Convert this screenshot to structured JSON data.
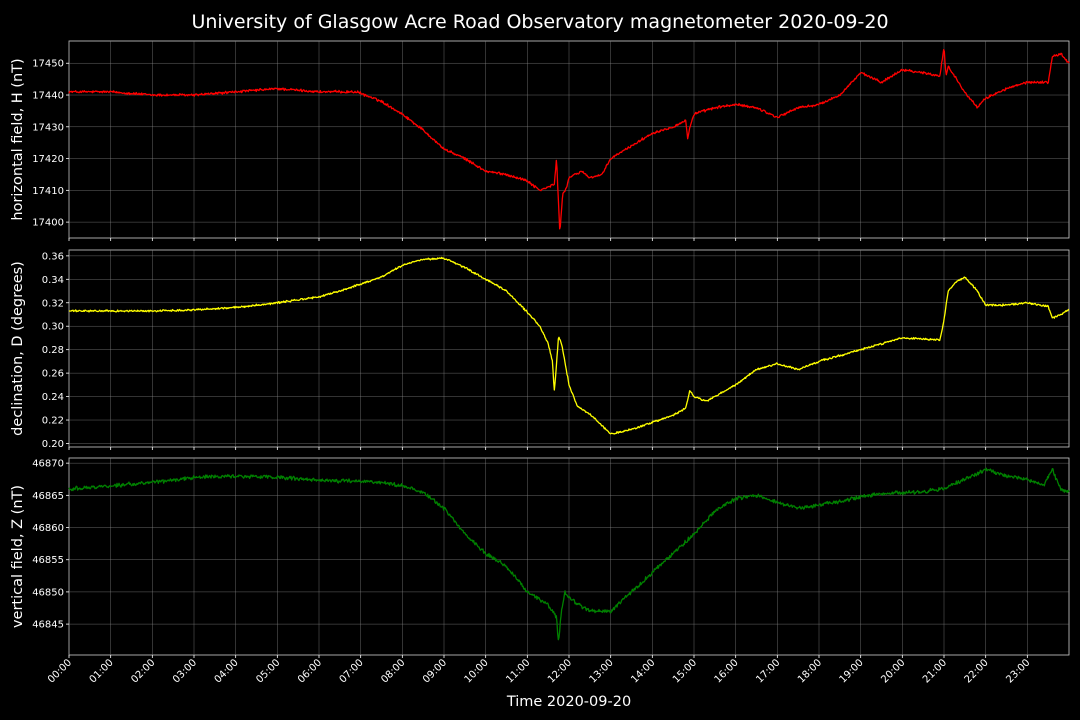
{
  "title": "University of Glasgow Acre Road Observatory magnetometer 2020-09-20",
  "chart_data": {
    "type": "line",
    "x_label": "Time 2020-09-20",
    "x_ticks": [
      "00:00",
      "01:00",
      "02:00",
      "03:00",
      "04:00",
      "05:00",
      "06:00",
      "07:00",
      "08:00",
      "09:00",
      "10:00",
      "11:00",
      "12:00",
      "13:00",
      "14:00",
      "15:00",
      "16:00",
      "17:00",
      "18:00",
      "19:00",
      "20:00",
      "21:00",
      "22:00",
      "23:00"
    ],
    "x_range_hours": [
      0,
      24
    ],
    "grid": true,
    "panels": [
      {
        "ylabel": "horizontal field, H (nT)",
        "color": "#ff0000",
        "ylim": [
          17395,
          17457
        ],
        "yticks": [
          17400,
          17410,
          17420,
          17430,
          17440,
          17450
        ],
        "tick_decimals": 0,
        "noise": 0.6,
        "x": [
          0,
          1,
          2,
          3,
          4,
          5,
          6,
          6.9,
          7.5,
          8,
          8.5,
          9,
          9.5,
          10,
          10.5,
          11,
          11.3,
          11.5,
          11.65,
          11.7,
          11.78,
          11.8,
          11.85,
          11.95,
          12,
          12.3,
          12.5,
          12.8,
          13,
          13.5,
          14,
          14.5,
          14.8,
          14.85,
          14.9,
          15,
          15.5,
          16,
          16.5,
          17,
          17.5,
          18,
          18.5,
          19,
          19.5,
          20,
          20.5,
          20.9,
          21,
          21.05,
          21.1,
          21.2,
          21.5,
          21.8,
          22,
          22.5,
          23,
          23.5,
          23.6,
          23.8,
          24
        ],
        "y": [
          17441,
          17441,
          17440,
          17440,
          17441,
          17442,
          17441,
          17441,
          17438,
          17434,
          17429,
          17423,
          17420,
          17416,
          17415,
          17413,
          17410,
          17411,
          17412,
          17420,
          17397,
          17400,
          17409,
          17411,
          17414,
          17416,
          17414,
          17415,
          17420,
          17424,
          17428,
          17430,
          17432,
          17426,
          17430,
          17434,
          17436,
          17437,
          17436,
          17433,
          17436,
          17437,
          17440,
          17447,
          17444,
          17448,
          17447,
          17446,
          17455,
          17446,
          17449,
          17447,
          17441,
          17436,
          17439,
          17442,
          17444,
          17444,
          17452,
          17453,
          17450
        ]
      },
      {
        "ylabel": "declination, D (degrees)",
        "color": "#ffff00",
        "ylim": [
          0.197,
          0.365
        ],
        "yticks": [
          0.2,
          0.22,
          0.24,
          0.26,
          0.28,
          0.3,
          0.32,
          0.34,
          0.36
        ],
        "tick_decimals": 2,
        "noise": 0.0012,
        "x": [
          0,
          1,
          2,
          3,
          4,
          5,
          6,
          6.5,
          7,
          7.5,
          8,
          8.5,
          9,
          9.5,
          10,
          10.5,
          11,
          11.3,
          11.5,
          11.6,
          11.65,
          11.75,
          11.82,
          11.9,
          12,
          12.2,
          12.5,
          12.8,
          13,
          13.5,
          14,
          14.5,
          14.8,
          14.9,
          15,
          15.3,
          16,
          16.5,
          17,
          17.5,
          18,
          18.5,
          19,
          19.5,
          20,
          20.5,
          20.9,
          21,
          21.1,
          21.3,
          21.5,
          21.8,
          22,
          22.5,
          23,
          23.5,
          23.6,
          23.8,
          24
        ],
        "y": [
          0.313,
          0.313,
          0.313,
          0.314,
          0.316,
          0.32,
          0.325,
          0.33,
          0.336,
          0.342,
          0.352,
          0.357,
          0.358,
          0.35,
          0.34,
          0.33,
          0.312,
          0.3,
          0.285,
          0.27,
          0.244,
          0.292,
          0.285,
          0.27,
          0.25,
          0.232,
          0.225,
          0.215,
          0.208,
          0.212,
          0.218,
          0.224,
          0.23,
          0.245,
          0.24,
          0.236,
          0.25,
          0.263,
          0.268,
          0.263,
          0.27,
          0.275,
          0.28,
          0.285,
          0.29,
          0.289,
          0.288,
          0.305,
          0.33,
          0.338,
          0.342,
          0.33,
          0.318,
          0.318,
          0.32,
          0.317,
          0.307,
          0.31,
          0.314
        ]
      },
      {
        "ylabel": "vertical field, Z (nT)",
        "color": "#008000",
        "ylim": [
          46840.2,
          46870.8
        ],
        "yticks": [
          46845,
          46850,
          46855,
          46860,
          46865,
          46870
        ],
        "tick_decimals": 0,
        "noise": 0.45,
        "x": [
          0,
          1,
          2,
          3,
          4,
          5,
          6,
          7,
          7.5,
          8,
          8.5,
          9,
          9.5,
          10,
          10.5,
          11,
          11.5,
          11.7,
          11.75,
          11.8,
          11.9,
          12,
          12.5,
          13,
          13.5,
          14,
          14.5,
          15,
          15.5,
          16,
          16.5,
          17,
          17.5,
          18,
          18.5,
          19,
          19.5,
          20,
          20.5,
          21,
          21.5,
          22,
          22.5,
          23,
          23.4,
          23.6,
          23.8,
          24
        ],
        "y": [
          46866,
          46866.5,
          46867,
          46867.8,
          46868,
          46867.8,
          46867.3,
          46867.2,
          46867,
          46866.5,
          46865.5,
          46863,
          46859,
          46856,
          46854,
          46850,
          46848,
          46846,
          46842,
          46846,
          46850,
          46849,
          46847,
          46847,
          46850,
          46853,
          46856,
          46859,
          46862.5,
          46864.5,
          46865,
          46864,
          46863,
          46863.5,
          46864,
          46864.8,
          46865.2,
          46865.4,
          46865.6,
          46866,
          46867.5,
          46869,
          46868,
          46867.5,
          46866.5,
          46869,
          46866,
          46865.5
        ]
      }
    ]
  }
}
